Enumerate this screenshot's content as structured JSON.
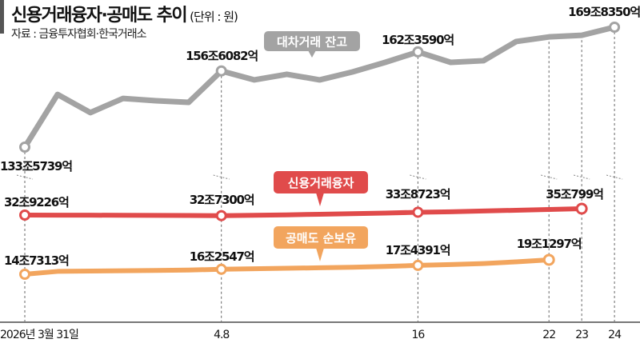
{
  "title": "신용거래융자·공매도 추이",
  "unit": "(단위 : 원)",
  "source": "자료 : 금융투자협회·한국거래소",
  "chart_data": {
    "type": "line",
    "title": "신용거래융자·공매도 추이",
    "unit": "(단위 : 원)",
    "x": [
      "2026-03-31",
      "2026-04-01",
      "2026-04-02",
      "2026-04-03",
      "2026-04-06",
      "2026-04-07",
      "2026-04-08",
      "2026-04-09",
      "2026-04-10",
      "2026-04-13",
      "2026-04-14",
      "2026-04-15",
      "2026-04-16",
      "2026-04-17",
      "2026-04-20",
      "2026-04-21",
      "2026-04-22",
      "2026-04-23",
      "2026-04-24"
    ],
    "x_tick_labels": [
      {
        "index": 0,
        "label": "2026년 3월 31일"
      },
      {
        "index": 6,
        "label": "4.8"
      },
      {
        "index": 12,
        "label": "16"
      },
      {
        "index": 16,
        "label": "22"
      },
      {
        "index": 17,
        "label": "23"
      },
      {
        "index": 18,
        "label": "24"
      }
    ],
    "y_unit": "조원",
    "broken_axis": true,
    "series": [
      {
        "name": "대차거래 잔고",
        "color": "#a3a3a3",
        "values": [
          133.57,
          149.5,
          144.0,
          148.3,
          147.6,
          147.1,
          156.61,
          153.9,
          155.6,
          153.9,
          156.3,
          159.2,
          162.36,
          159.2,
          159.7,
          165.5,
          166.9,
          167.4,
          169.84
        ],
        "labels": [
          {
            "index": 0,
            "text": "133조5739억"
          },
          {
            "index": 6,
            "text": "156조6082억"
          },
          {
            "index": 12,
            "text": "162조3590억"
          },
          {
            "index": 18,
            "text": "169조8350억"
          }
        ]
      },
      {
        "name": "신용거래융자",
        "color": "#e04b4b",
        "values": [
          32.92,
          32.9,
          32.88,
          32.85,
          32.82,
          32.78,
          32.73,
          32.85,
          33.0,
          33.2,
          33.4,
          33.6,
          33.87,
          34.05,
          34.3,
          34.55,
          34.8,
          35.08,
          null
        ],
        "labels": [
          {
            "index": 0,
            "text": "32조9226억"
          },
          {
            "index": 6,
            "text": "32조7300억"
          },
          {
            "index": 12,
            "text": "33조8723억"
          },
          {
            "index": 17,
            "text": "35조799억"
          }
        ]
      },
      {
        "name": "공매도 순보유",
        "color": "#f2a55e",
        "values": [
          14.73,
          15.6,
          15.7,
          15.8,
          15.9,
          16.0,
          16.25,
          16.4,
          16.55,
          16.7,
          16.85,
          17.1,
          17.44,
          17.7,
          18.0,
          18.5,
          19.13,
          null,
          null
        ],
        "labels": [
          {
            "index": 0,
            "text": "14조7313억"
          },
          {
            "index": 6,
            "text": "16조2547억"
          },
          {
            "index": 12,
            "text": "17조4391억"
          },
          {
            "index": 16,
            "text": "19조1297억"
          }
        ]
      }
    ],
    "grid": false,
    "legend": "inline callouts"
  }
}
